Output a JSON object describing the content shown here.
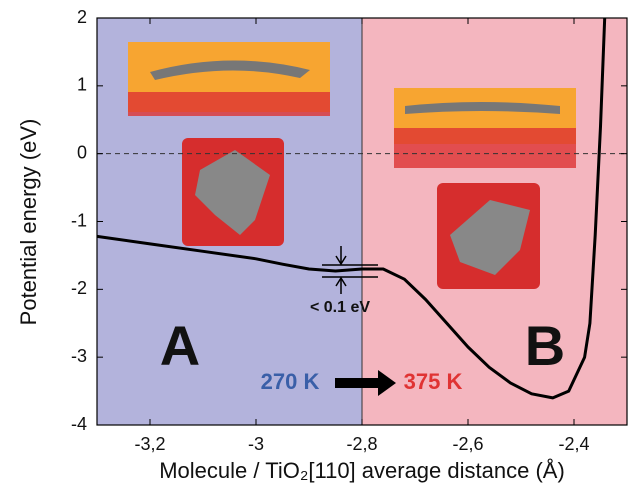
{
  "chart_data": {
    "type": "line",
    "xlabel": "Molecule / TiO₂[110] average distance (Å)",
    "ylabel": "Potential energy (eV)",
    "x": [
      -3.3,
      -3.2,
      -3.1,
      -3.0,
      -2.95,
      -2.9,
      -2.85,
      -2.8,
      -2.76,
      -2.72,
      -2.68,
      -2.64,
      -2.6,
      -2.56,
      -2.52,
      -2.48,
      -2.44,
      -2.41,
      -2.38,
      -2.37,
      -2.36,
      -2.35,
      -2.342
    ],
    "series": [
      {
        "color": "#000000",
        "values": [
          -1.22,
          -1.33,
          -1.44,
          -1.55,
          -1.63,
          -1.7,
          -1.73,
          -1.7,
          -1.7,
          -1.85,
          -2.15,
          -2.5,
          -2.85,
          -3.15,
          -3.38,
          -3.54,
          -3.6,
          -3.5,
          -3.0,
          -2.5,
          -1.2,
          0.4,
          2.0
        ]
      }
    ],
    "xlim": [
      -3.3,
      -2.3
    ],
    "ylim": [
      -4,
      2
    ],
    "xticks": [
      {
        "value": -3.2,
        "label": "-3,2"
      },
      {
        "value": -3.0,
        "label": "-3"
      },
      {
        "value": -2.8,
        "label": "-2,8"
      },
      {
        "value": -2.6,
        "label": "-2,6"
      },
      {
        "value": -2.4,
        "label": "-2,4"
      }
    ],
    "yticks": [
      -4,
      -3,
      -2,
      -1,
      0,
      1,
      2
    ],
    "hline": 0,
    "shaded_regions": [
      {
        "xlim": [
          -3.3,
          -2.8
        ],
        "color": "#b3b3dc"
      },
      {
        "xlim": [
          -2.8,
          -2.3
        ],
        "color": "#f4b6bf"
      }
    ],
    "annotations": {
      "a": "A",
      "b": "B",
      "t1": "270 K",
      "t2": "375 K",
      "barrier": "< 0.1 eV"
    }
  }
}
